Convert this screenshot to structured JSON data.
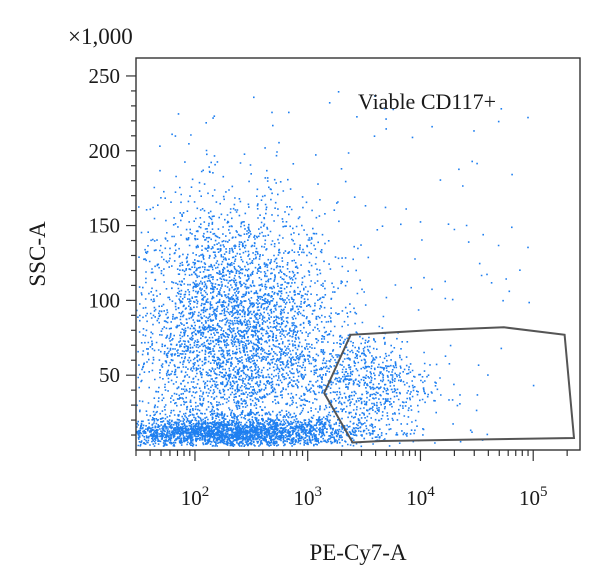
{
  "chart_data": {
    "type": "scatter",
    "title": "",
    "xlabel": "PE-Cy7-A",
    "ylabel": "SSC-A",
    "y_multiplier_label": "×1,000",
    "x_scale": "log",
    "xlim": [
      30,
      260000
    ],
    "ylim": [
      0,
      262
    ],
    "x_ticks": [
      {
        "value": 100,
        "base": "10",
        "exp": "2"
      },
      {
        "value": 1000,
        "base": "10",
        "exp": "3"
      },
      {
        "value": 10000,
        "base": "10",
        "exp": "4"
      },
      {
        "value": 100000,
        "base": "10",
        "exp": "5"
      }
    ],
    "y_ticks": [
      {
        "value": 50,
        "label": "50"
      },
      {
        "value": 100,
        "label": "100"
      },
      {
        "value": 150,
        "label": "150"
      },
      {
        "value": 200,
        "label": "200"
      },
      {
        "value": 250,
        "label": "250"
      }
    ],
    "grid": false,
    "point_color": "#1e7ff0",
    "gate": {
      "name": "Viable CD117+",
      "color": "#555555",
      "vertices": [
        [
          1400,
          38
        ],
        [
          2400,
          77
        ],
        [
          12000,
          80
        ],
        [
          55000,
          82
        ],
        [
          190000,
          77
        ],
        [
          230000,
          8
        ],
        [
          4500,
          6
        ],
        [
          2500,
          5
        ]
      ]
    },
    "populations": [
      {
        "description": "main cluster",
        "x_log_center": 2.35,
        "x_log_sd": 0.45,
        "y_center": 75,
        "y_sd": 45
      },
      {
        "description": "low SSC band",
        "x_log_center": 2.3,
        "x_log_sd": 0.6,
        "y_center": 12,
        "y_sd": 5
      },
      {
        "description": "CD117+ cluster",
        "x_log_center": 3.5,
        "x_log_sd": 0.3,
        "y_center": 45,
        "y_sd": 18
      }
    ]
  }
}
